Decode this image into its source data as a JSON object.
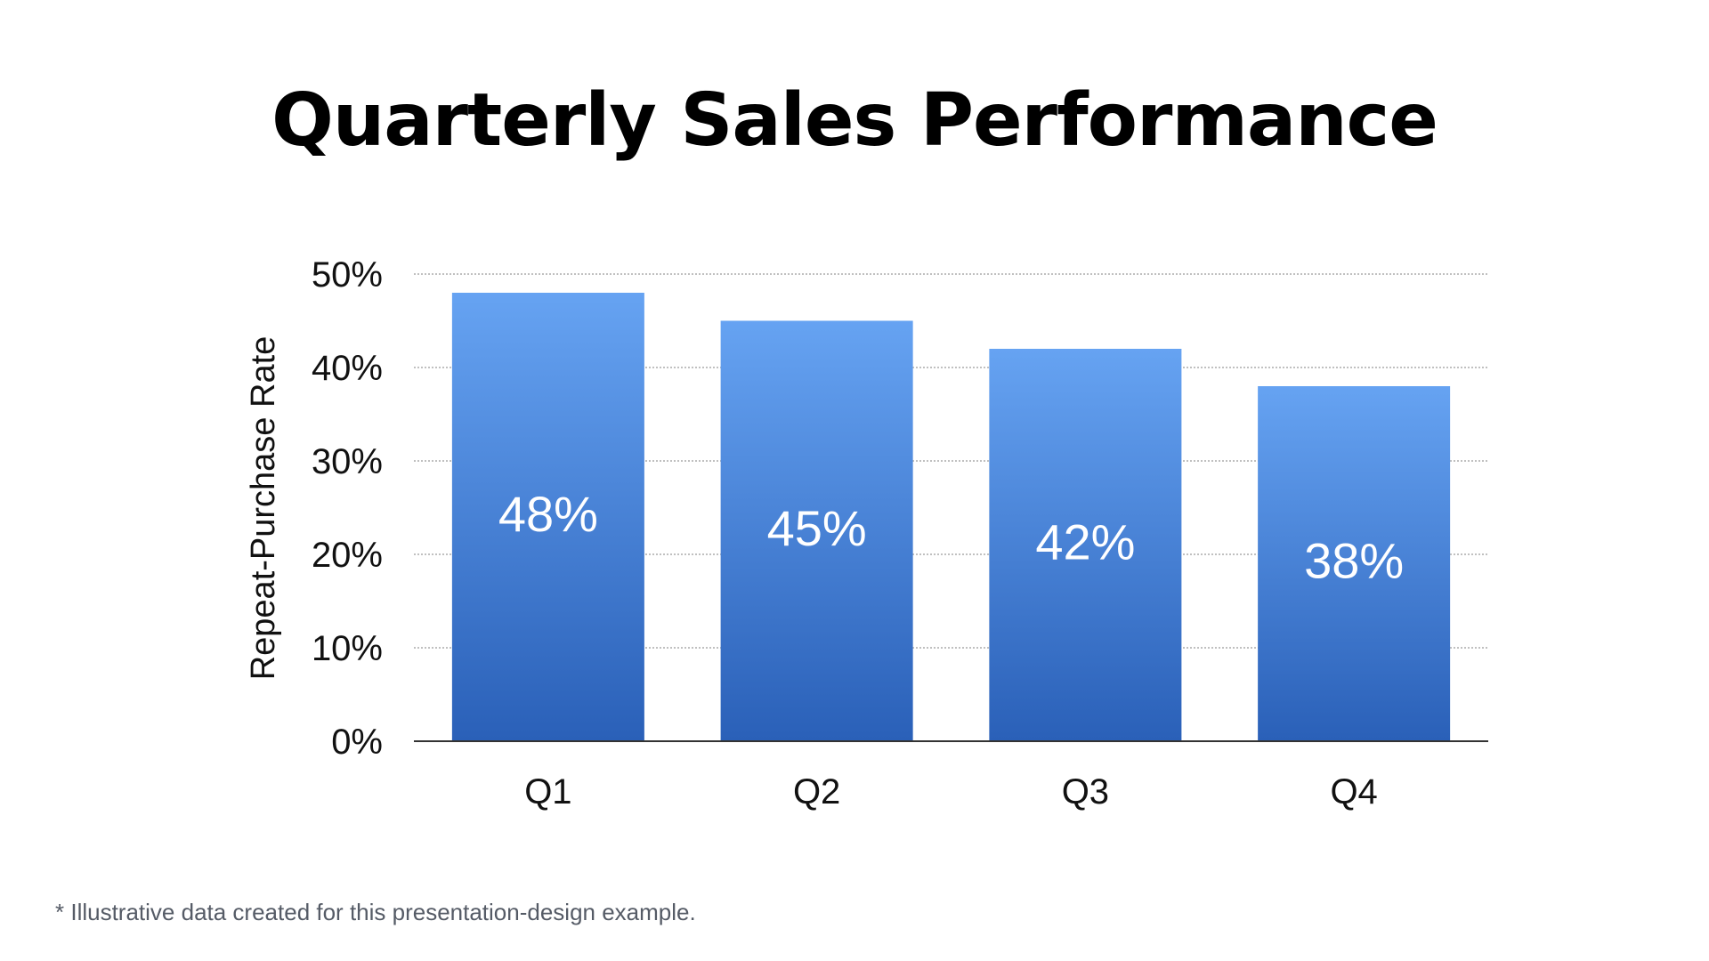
{
  "title": "Quarterly Sales Performance",
  "footnote": "* Illustrative data created for this presentation-design example.",
  "colors": {
    "bar_top": "#66a3f2",
    "bar_bottom": "#2a60b8",
    "grid": "#9a9a9a",
    "axis": "#333333",
    "text": "#111111",
    "bar_label": "#ffffff"
  },
  "chart_data": {
    "type": "bar",
    "title": "Quarterly Sales Performance",
    "categories": [
      "Q1",
      "Q2",
      "Q3",
      "Q4"
    ],
    "values": [
      48,
      45,
      42,
      38
    ],
    "value_labels": [
      "48%",
      "45%",
      "42%",
      "38%"
    ],
    "xlabel": "",
    "ylabel": "Repeat-Purchase Rate",
    "ylim": [
      0,
      50
    ],
    "yticks": [
      0,
      10,
      20,
      30,
      40,
      50
    ],
    "ytick_labels": [
      "0%",
      "10%",
      "20%",
      "30%",
      "40%",
      "50%"
    ],
    "grid": true,
    "legend": false
  }
}
